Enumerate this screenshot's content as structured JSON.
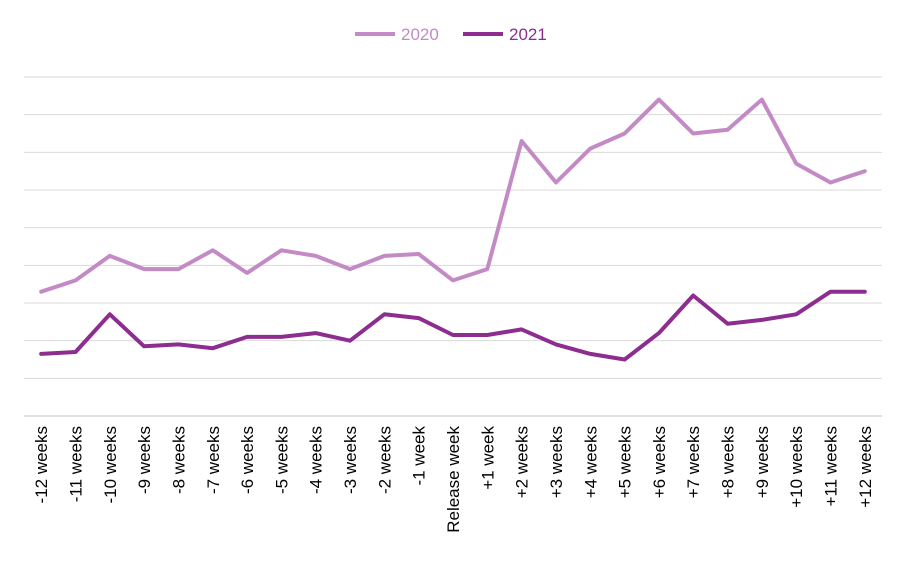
{
  "chart_data": {
    "type": "line",
    "categories": [
      "-12 weeks",
      "-11 weeks",
      "-10 weeks",
      "-9 weeks",
      "-8 weeks",
      "-7 weeks",
      "-6 weeks",
      "-5 weeks",
      "-4 weeks",
      "-3 weeks",
      "-2 weeks",
      "-1 week",
      "Release week",
      "+1 week",
      "+2 weeks",
      "+3 weeks",
      "+4 weeks",
      "+5 weeks",
      "+6 weeks",
      "+7 weeks",
      "+8 weeks",
      "+9 weeks",
      "+10 weeks",
      "+11 weeks",
      "+12 weeks"
    ],
    "series": [
      {
        "name": "2020",
        "color": "#c48ac6",
        "values": [
          6.6,
          7.2,
          8.5,
          7.8,
          7.8,
          8.8,
          7.6,
          8.8,
          8.5,
          7.8,
          8.5,
          8.6,
          7.2,
          7.8,
          14.6,
          12.4,
          14.2,
          15.0,
          16.8,
          15.0,
          15.2,
          16.8,
          13.4,
          12.4,
          13.0
        ]
      },
      {
        "name": "2021",
        "color": "#8c2d8f",
        "values": [
          3.3,
          3.4,
          5.4,
          3.7,
          3.8,
          3.6,
          4.2,
          4.2,
          4.4,
          4.0,
          5.4,
          5.2,
          4.3,
          4.3,
          4.6,
          3.8,
          3.3,
          3.0,
          4.4,
          6.4,
          4.9,
          5.1,
          5.4,
          6.6,
          6.6
        ]
      }
    ],
    "ylim": [
      0,
      18
    ],
    "grid": true,
    "legend": "top-center",
    "xlabel": "",
    "ylabel": "",
    "title": ""
  }
}
